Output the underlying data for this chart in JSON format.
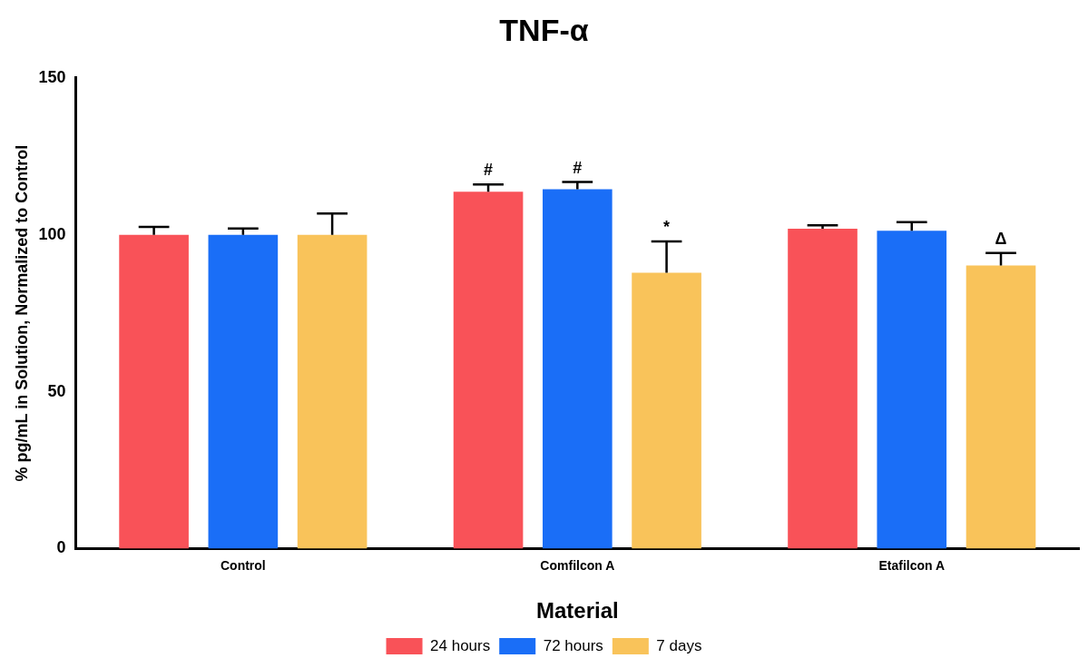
{
  "chart_data": {
    "type": "bar",
    "title": "TNF-α",
    "xlabel": "Material",
    "ylabel": "% pg/mL in Solution, Normalized to Control",
    "categories": [
      "Control",
      "Comfilcon A",
      "Etafilcon A"
    ],
    "series": [
      {
        "name": "24 hours",
        "color": "#f95258",
        "values": [
          100,
          113.7,
          101.9
        ],
        "errors": [
          [
            100,
            102.5
          ],
          [
            113.7,
            116
          ],
          [
            101.9,
            103
          ]
        ],
        "value_labels": [
          null,
          "#",
          null
        ]
      },
      {
        "name": "72 hours",
        "color": "#1a6ef7",
        "values": [
          100,
          114.5,
          101.3
        ],
        "errors": [
          [
            100,
            102
          ],
          [
            114.5,
            116.8
          ],
          [
            101.3,
            104
          ]
        ],
        "value_labels": [
          null,
          "#",
          null
        ]
      },
      {
        "name": "7 days",
        "color": "#f9c35a",
        "values": [
          100,
          87.9,
          90.2
        ],
        "errors": [
          [
            100,
            106.8
          ],
          [
            87.9,
            97.9
          ],
          [
            90.2,
            94.2
          ]
        ],
        "value_labels": [
          null,
          "*",
          "Δ"
        ]
      }
    ],
    "ylim": [
      0,
      150
    ],
    "yticks": [
      0,
      50,
      100,
      150
    ],
    "grid": false,
    "legend": "bottom"
  }
}
